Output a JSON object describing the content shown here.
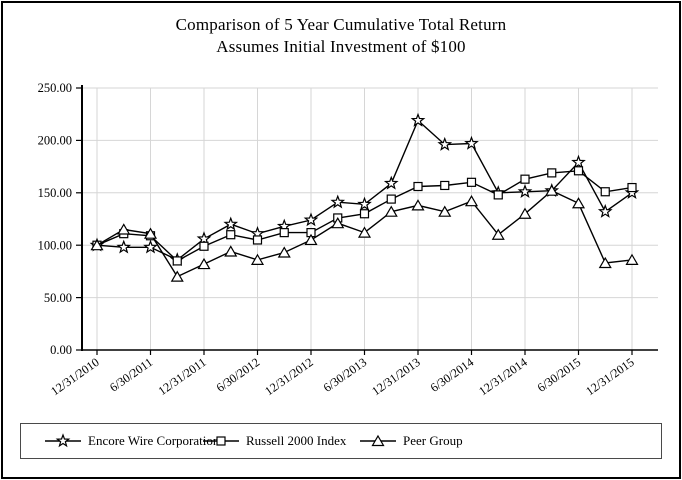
{
  "title": {
    "line1": "Comparison of 5 Year Cumulative Total Return",
    "line2": "Assumes Initial Investment of $100"
  },
  "chart_data": {
    "type": "line",
    "x": [
      "12/31/2010",
      "3/31/2011",
      "6/30/2011",
      "9/30/2011",
      "12/31/2011",
      "3/31/2012",
      "6/30/2012",
      "9/30/2012",
      "12/31/2012",
      "3/31/2013",
      "6/30/2013",
      "9/30/2013",
      "12/31/2013",
      "3/31/2014",
      "6/30/2014",
      "9/30/2014",
      "12/31/2014",
      "3/31/2015",
      "6/30/2015",
      "9/30/2015",
      "12/31/2015"
    ],
    "x_tick_labels": [
      "12/31/2010",
      "6/30/2011",
      "12/31/2011",
      "6/30/2012",
      "12/31/2012",
      "6/30/2013",
      "12/31/2013",
      "6/30/2014",
      "12/31/2014",
      "6/30/2015",
      "12/31/2015"
    ],
    "y_ticks": [
      "0.00",
      "50.00",
      "100.00",
      "150.00",
      "200.00",
      "250.00"
    ],
    "ylim": [
      0,
      250
    ],
    "grid": true,
    "legend_position": "bottom",
    "series": [
      {
        "name": "Encore Wire Corporation",
        "marker": "star",
        "values": [
          100,
          98,
          98,
          86,
          106,
          120,
          111,
          118,
          124,
          141,
          139,
          159,
          219,
          196,
          197,
          150,
          151,
          152,
          179,
          132,
          150
        ]
      },
      {
        "name": "Russell 2000 Index",
        "marker": "square",
        "values": [
          100,
          111,
          109,
          85,
          99,
          110,
          105,
          112,
          112,
          126,
          130,
          144,
          156,
          157,
          160,
          148,
          163,
          169,
          171,
          151,
          155
        ]
      },
      {
        "name": "Peer Group",
        "marker": "triangle",
        "values": [
          100,
          115,
          111,
          70,
          82,
          94,
          86,
          93,
          105,
          121,
          112,
          132,
          138,
          132,
          142,
          110,
          130,
          152,
          140,
          83,
          86
        ]
      }
    ]
  },
  "colors": {
    "line": "#000000",
    "grid": "#d6d6d6",
    "axis": "#000000",
    "background": "#ffffff",
    "frame_border": "#000000"
  }
}
